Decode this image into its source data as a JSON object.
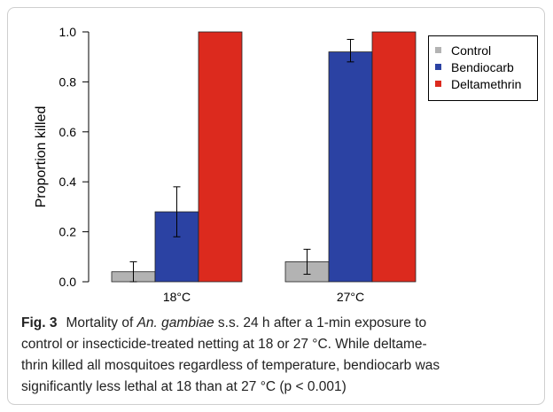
{
  "chart_data": {
    "type": "bar",
    "ylabel": "Proportion killed",
    "categories": [
      "18°C",
      "27°C"
    ],
    "series": [
      {
        "name": "Control",
        "color": "#b3b3b3",
        "values": [
          0.04,
          0.08
        ],
        "error_low": [
          0.0,
          0.03
        ],
        "error_high": [
          0.08,
          0.13
        ]
      },
      {
        "name": "Bendiocarb",
        "color": "#2b42a3",
        "values": [
          0.28,
          0.92
        ],
        "error_low": [
          0.18,
          0.88
        ],
        "error_high": [
          0.38,
          0.97
        ]
      },
      {
        "name": "Deltamethrin",
        "color": "#dc2a1e",
        "values": [
          1.0,
          1.0
        ],
        "error_low": [
          null,
          null
        ],
        "error_high": [
          null,
          null
        ]
      }
    ],
    "ylim": [
      0,
      1
    ],
    "yticks": [
      {
        "value": 0,
        "label": "0.0"
      },
      {
        "value": 0.2,
        "label": "0.2"
      },
      {
        "value": 0.4,
        "label": "0.4"
      },
      {
        "value": 0.6,
        "label": "0.6"
      },
      {
        "value": 0.8,
        "label": "0.8"
      },
      {
        "value": 1,
        "label": "1.0"
      }
    ],
    "legend": "top-right"
  },
  "caption": {
    "label": "Fig. 3",
    "line1": [
      "Mortality of ",
      "An. gambiae",
      " s.s. 24 h after a 1-min exposure to"
    ],
    "lines": [
      "control or insecticide-treated netting at 18 or 27 °C. While deltame-",
      "thrin killed all mosquitoes regardless of temperature, bendiocarb was",
      "significantly less lethal at 18 than at 27 °C (p < 0.001)"
    ]
  }
}
